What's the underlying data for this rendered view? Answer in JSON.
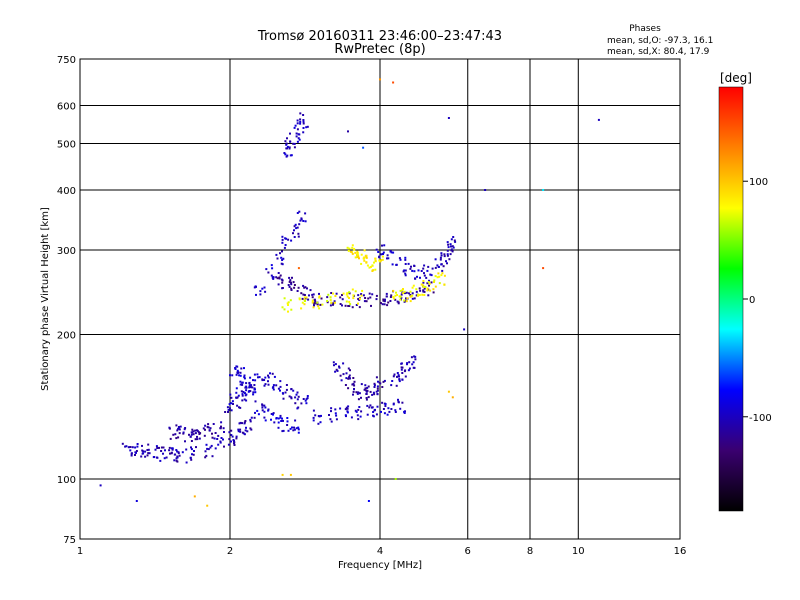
{
  "chart_data": {
    "type": "scatter",
    "title": "Tromsø 20160311 23:46:00–23:47:43",
    "subtitle": "RwPretec (8p)",
    "xlabel": "Frequency [MHz]",
    "ylabel": "Stationary phase Virtual Height [km]",
    "x_scale": "log",
    "y_scale": "log",
    "xlim": [
      1,
      16
    ],
    "ylim": [
      75,
      750
    ],
    "x_ticks": [
      1,
      2,
      4,
      6,
      8,
      10,
      16
    ],
    "y_ticks": [
      75,
      100,
      200,
      300,
      400,
      500,
      600,
      750
    ],
    "grid": true,
    "stats": {
      "heading": "Phases",
      "line_o": "mean, sd,O: -97.3, 16.1",
      "line_x": "mean, sd,X:  80.4, 17.9"
    },
    "colorbar": {
      "unit": "[deg]",
      "range": [
        -180,
        180
      ],
      "ticks": [
        100,
        0,
        -100
      ],
      "colors": [
        "#000000",
        "#3a0070",
        "#0000ff",
        "#00ffff",
        "#00ff00",
        "#ffff00",
        "#ff8000",
        "#ff0000"
      ]
    },
    "traces": [
      {
        "x": [
          1.25,
          1.3,
          1.35,
          1.4,
          1.45,
          1.5,
          1.55,
          1.6,
          1.7,
          1.8,
          1.9,
          2.0,
          2.05,
          2.1,
          2.2
        ],
        "y": [
          115,
          115,
          114,
          114,
          113,
          113,
          112,
          112,
          113,
          115,
          118,
          122,
          125,
          128,
          130
        ],
        "phase": -105
      },
      {
        "x": [
          1.55,
          1.6,
          1.65,
          1.7,
          1.75,
          1.8,
          1.9
        ],
        "y": [
          125,
          125,
          124,
          124,
          125,
          126,
          127
        ],
        "phase": -110
      },
      {
        "x": [
          2.0,
          2.05,
          2.1,
          2.15,
          2.2,
          2.3,
          2.4,
          2.5,
          2.6,
          2.7,
          2.8
        ],
        "y": [
          140,
          145,
          150,
          155,
          158,
          160,
          162,
          158,
          152,
          148,
          145
        ],
        "phase": -100
      },
      {
        "x": [
          2.05,
          2.1,
          2.15,
          2.2,
          2.3,
          2.4,
          2.5,
          2.6,
          2.7
        ],
        "y": [
          170,
          165,
          160,
          150,
          140,
          135,
          132,
          130,
          128
        ],
        "phase": -95
      },
      {
        "x": [
          3.0,
          3.2,
          3.4,
          3.6,
          3.8,
          4.0,
          4.2,
          4.4
        ],
        "y": [
          135,
          136,
          137,
          138,
          139,
          140,
          141,
          142
        ],
        "phase": -100
      },
      {
        "x": [
          3.3,
          3.4,
          3.5,
          3.6,
          3.7,
          3.8,
          3.9,
          4.0
        ],
        "y": [
          170,
          165,
          160,
          155,
          150,
          152,
          155,
          158
        ],
        "phase": -110
      },
      {
        "x": [
          4.3,
          4.4,
          4.5,
          4.6
        ],
        "y": [
          160,
          165,
          170,
          175
        ],
        "phase": -105
      },
      {
        "x": [
          2.3,
          2.4,
          2.5,
          2.6,
          2.7,
          2.8
        ],
        "y": [
          250,
          270,
          290,
          310,
          330,
          350
        ],
        "phase": -100
      },
      {
        "x": [
          2.5,
          2.6,
          2.7,
          2.8,
          2.9,
          3.0,
          3.2,
          3.4,
          3.6,
          3.8,
          4.0,
          4.2,
          4.4,
          4.6,
          4.8,
          5.0
        ],
        "y": [
          260,
          255,
          250,
          245,
          240,
          238,
          237,
          236,
          236,
          236,
          237,
          238,
          240,
          243,
          246,
          250
        ],
        "phase": -115
      },
      {
        "x": [
          2.6,
          2.8,
          3.0,
          3.2,
          3.4,
          3.6
        ],
        "y": [
          230,
          232,
          234,
          236,
          238,
          240
        ],
        "phase": 75
      },
      {
        "x": [
          3.5,
          3.6,
          3.7,
          3.8,
          3.9,
          4.0
        ],
        "y": [
          300,
          295,
          290,
          285,
          280,
          282
        ],
        "phase": 85
      },
      {
        "x": [
          4.0,
          4.2,
          4.4,
          4.6,
          4.8,
          5.0
        ],
        "y": [
          300,
          290,
          280,
          275,
          270,
          268
        ],
        "phase": -100
      },
      {
        "x": [
          4.3,
          4.5,
          4.7,
          4.9,
          5.1,
          5.3
        ],
        "y": [
          240,
          243,
          246,
          250,
          255,
          260
        ],
        "phase": 80
      },
      {
        "x": [
          5.3,
          5.4,
          5.5,
          5.6
        ],
        "y": [
          280,
          290,
          300,
          310
        ],
        "phase": -105
      },
      {
        "x": [
          2.6,
          2.65,
          2.7,
          2.75,
          2.8
        ],
        "y": [
          480,
          500,
          520,
          540,
          560
        ],
        "phase": -100
      }
    ],
    "isolated_points": [
      {
        "x": 1.1,
        "y": 97,
        "phase": -100
      },
      {
        "x": 1.3,
        "y": 90,
        "phase": -90
      },
      {
        "x": 1.7,
        "y": 92,
        "phase": 110
      },
      {
        "x": 1.8,
        "y": 88,
        "phase": 100
      },
      {
        "x": 2.55,
        "y": 102,
        "phase": 95
      },
      {
        "x": 2.65,
        "y": 102,
        "phase": 100
      },
      {
        "x": 3.45,
        "y": 530,
        "phase": -110
      },
      {
        "x": 3.7,
        "y": 490,
        "phase": -60
      },
      {
        "x": 4.0,
        "y": 680,
        "phase": 120
      },
      {
        "x": 4.25,
        "y": 670,
        "phase": 150
      },
      {
        "x": 5.5,
        "y": 565,
        "phase": -100
      },
      {
        "x": 5.9,
        "y": 205,
        "phase": -100
      },
      {
        "x": 6.5,
        "y": 400,
        "phase": -100
      },
      {
        "x": 8.5,
        "y": 275,
        "phase": 150
      },
      {
        "x": 8.5,
        "y": 400,
        "phase": -30
      },
      {
        "x": 11.0,
        "y": 560,
        "phase": -100
      },
      {
        "x": 3.8,
        "y": 90,
        "phase": -80
      },
      {
        "x": 4.3,
        "y": 100,
        "phase": 60
      },
      {
        "x": 5.6,
        "y": 148,
        "phase": 110
      },
      {
        "x": 5.5,
        "y": 152,
        "phase": 100
      },
      {
        "x": 2.75,
        "y": 275,
        "phase": 140
      }
    ]
  }
}
